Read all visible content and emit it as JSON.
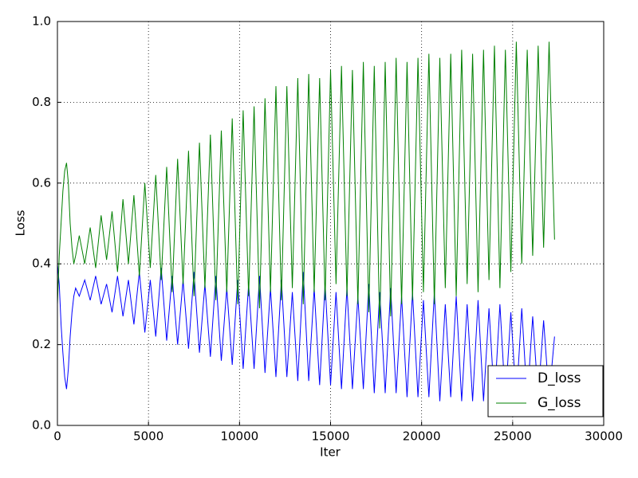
{
  "chart_data": {
    "type": "line",
    "xlabel": "Iter",
    "ylabel": "Loss",
    "x": [
      0,
      100,
      200,
      300,
      400,
      500,
      600,
      700,
      800,
      900,
      1000,
      1200,
      1500,
      1800,
      2100,
      2400,
      2700,
      3000,
      3300,
      3600,
      3900,
      4200,
      4500,
      4800,
      5100,
      5400,
      5700,
      6000,
      6300,
      6600,
      6900,
      7200,
      7500,
      7800,
      8100,
      8400,
      8700,
      9000,
      9300,
      9600,
      9900,
      10200,
      10500,
      10800,
      11100,
      11400,
      11700,
      12000,
      12300,
      12600,
      12900,
      13200,
      13500,
      13800,
      14100,
      14400,
      14700,
      15000,
      15300,
      15600,
      15900,
      16200,
      16500,
      16800,
      17100,
      17400,
      17700,
      18000,
      18300,
      18600,
      18900,
      19200,
      19500,
      19800,
      20100,
      20400,
      20700,
      21000,
      21300,
      21600,
      21900,
      22200,
      22500,
      22800,
      23100,
      23400,
      23700,
      24000,
      24300,
      24600,
      24900,
      25200,
      25500,
      25800,
      26100,
      26400,
      26700,
      27000,
      27300
    ],
    "series": [
      {
        "name": "D_loss",
        "color": "#0000ff",
        "values": [
          0.4,
          0.35,
          0.25,
          0.18,
          0.12,
          0.09,
          0.14,
          0.22,
          0.28,
          0.32,
          0.34,
          0.32,
          0.36,
          0.31,
          0.37,
          0.3,
          0.35,
          0.28,
          0.37,
          0.27,
          0.36,
          0.25,
          0.38,
          0.23,
          0.36,
          0.22,
          0.39,
          0.21,
          0.37,
          0.2,
          0.36,
          0.19,
          0.38,
          0.18,
          0.35,
          0.17,
          0.37,
          0.16,
          0.34,
          0.15,
          0.36,
          0.14,
          0.35,
          0.14,
          0.37,
          0.13,
          0.34,
          0.12,
          0.36,
          0.12,
          0.33,
          0.11,
          0.38,
          0.11,
          0.34,
          0.1,
          0.35,
          0.1,
          0.33,
          0.09,
          0.34,
          0.09,
          0.32,
          0.09,
          0.35,
          0.08,
          0.33,
          0.08,
          0.34,
          0.08,
          0.32,
          0.07,
          0.33,
          0.07,
          0.31,
          0.07,
          0.33,
          0.06,
          0.3,
          0.07,
          0.32,
          0.06,
          0.3,
          0.06,
          0.31,
          0.06,
          0.29,
          0.06,
          0.3,
          0.06,
          0.28,
          0.06,
          0.29,
          0.06,
          0.27,
          0.07,
          0.26,
          0.07,
          0.22
        ]
      },
      {
        "name": "G_loss",
        "color": "#008000",
        "values": [
          0.3,
          0.42,
          0.5,
          0.58,
          0.63,
          0.65,
          0.6,
          0.5,
          0.44,
          0.4,
          0.42,
          0.47,
          0.4,
          0.49,
          0.39,
          0.52,
          0.41,
          0.53,
          0.38,
          0.56,
          0.4,
          0.57,
          0.37,
          0.6,
          0.39,
          0.62,
          0.36,
          0.64,
          0.33,
          0.66,
          0.35,
          0.68,
          0.32,
          0.7,
          0.34,
          0.72,
          0.31,
          0.73,
          0.33,
          0.76,
          0.3,
          0.78,
          0.32,
          0.79,
          0.29,
          0.81,
          0.33,
          0.84,
          0.31,
          0.84,
          0.34,
          0.86,
          0.3,
          0.87,
          0.33,
          0.86,
          0.31,
          0.88,
          0.35,
          0.89,
          0.32,
          0.88,
          0.3,
          0.9,
          0.28,
          0.89,
          0.24,
          0.9,
          0.27,
          0.91,
          0.3,
          0.9,
          0.31,
          0.91,
          0.33,
          0.92,
          0.3,
          0.91,
          0.34,
          0.92,
          0.32,
          0.93,
          0.35,
          0.92,
          0.33,
          0.93,
          0.36,
          0.94,
          0.34,
          0.93,
          0.38,
          0.95,
          0.4,
          0.93,
          0.42,
          0.94,
          0.44,
          0.95,
          0.46
        ]
      }
    ],
    "xlim": [
      0,
      30000
    ],
    "xticks": [
      0,
      5000,
      10000,
      15000,
      20000,
      25000,
      30000
    ],
    "ylim": [
      0,
      1
    ],
    "yticks": [
      {
        "value": 0,
        "label": "0.0"
      },
      0.2,
      0.4,
      0.6,
      0.8,
      {
        "value": 1,
        "label": "1.0"
      }
    ],
    "grid": true,
    "legend": "lower right"
  }
}
